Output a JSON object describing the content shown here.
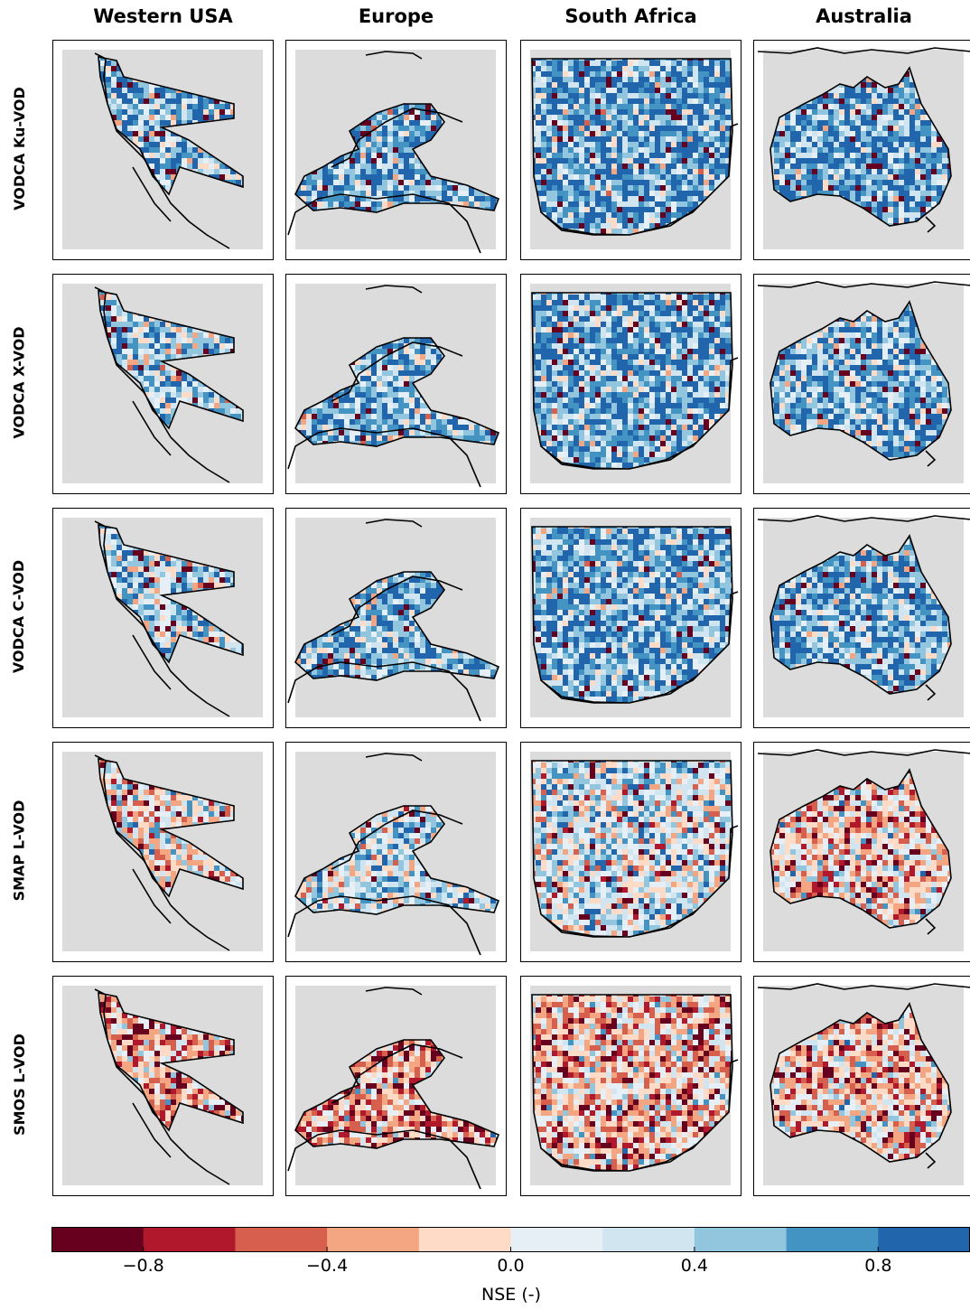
{
  "chart_data": {
    "type": "heatmap",
    "columns": [
      "Western USA",
      "Europe",
      "South Africa",
      "Australia"
    ],
    "rows": [
      "VODCA Ku-VOD",
      "VODCA X-VOD",
      "VODCA C-VOD",
      "SMAP L-VOD",
      "SMOS L-VOD"
    ],
    "colorbar": {
      "label": "NSE (-)",
      "range": [
        -1.0,
        1.0
      ],
      "ticks": [
        "−0.8",
        "−0.4",
        "0.0",
        "0.4",
        "0.8"
      ],
      "tick_values": [
        -0.8,
        -0.4,
        0.0,
        0.4,
        0.8
      ],
      "colormap": "RdBu",
      "levels": [
        -1.0,
        -0.8,
        -0.6,
        -0.4,
        -0.2,
        0.0,
        0.2,
        0.4,
        0.6,
        0.8,
        1.0
      ],
      "colors": [
        "#67001f",
        "#b2182b",
        "#d6604d",
        "#f4a582",
        "#fddbc7",
        "#e6eff5",
        "#d1e5f0",
        "#92c5de",
        "#4393c3",
        "#2166ac",
        "#053061"
      ]
    },
    "approx_mean_nse": [
      [
        0.55,
        0.6,
        0.65,
        0.65
      ],
      [
        0.45,
        0.55,
        0.6,
        0.6
      ],
      [
        0.4,
        0.55,
        0.6,
        0.6
      ],
      [
        0.0,
        0.3,
        0.2,
        -0.1
      ],
      [
        -0.25,
        -0.3,
        -0.15,
        -0.15
      ]
    ],
    "background_color": "#dcdcdc",
    "coastline_color": "#000000"
  }
}
